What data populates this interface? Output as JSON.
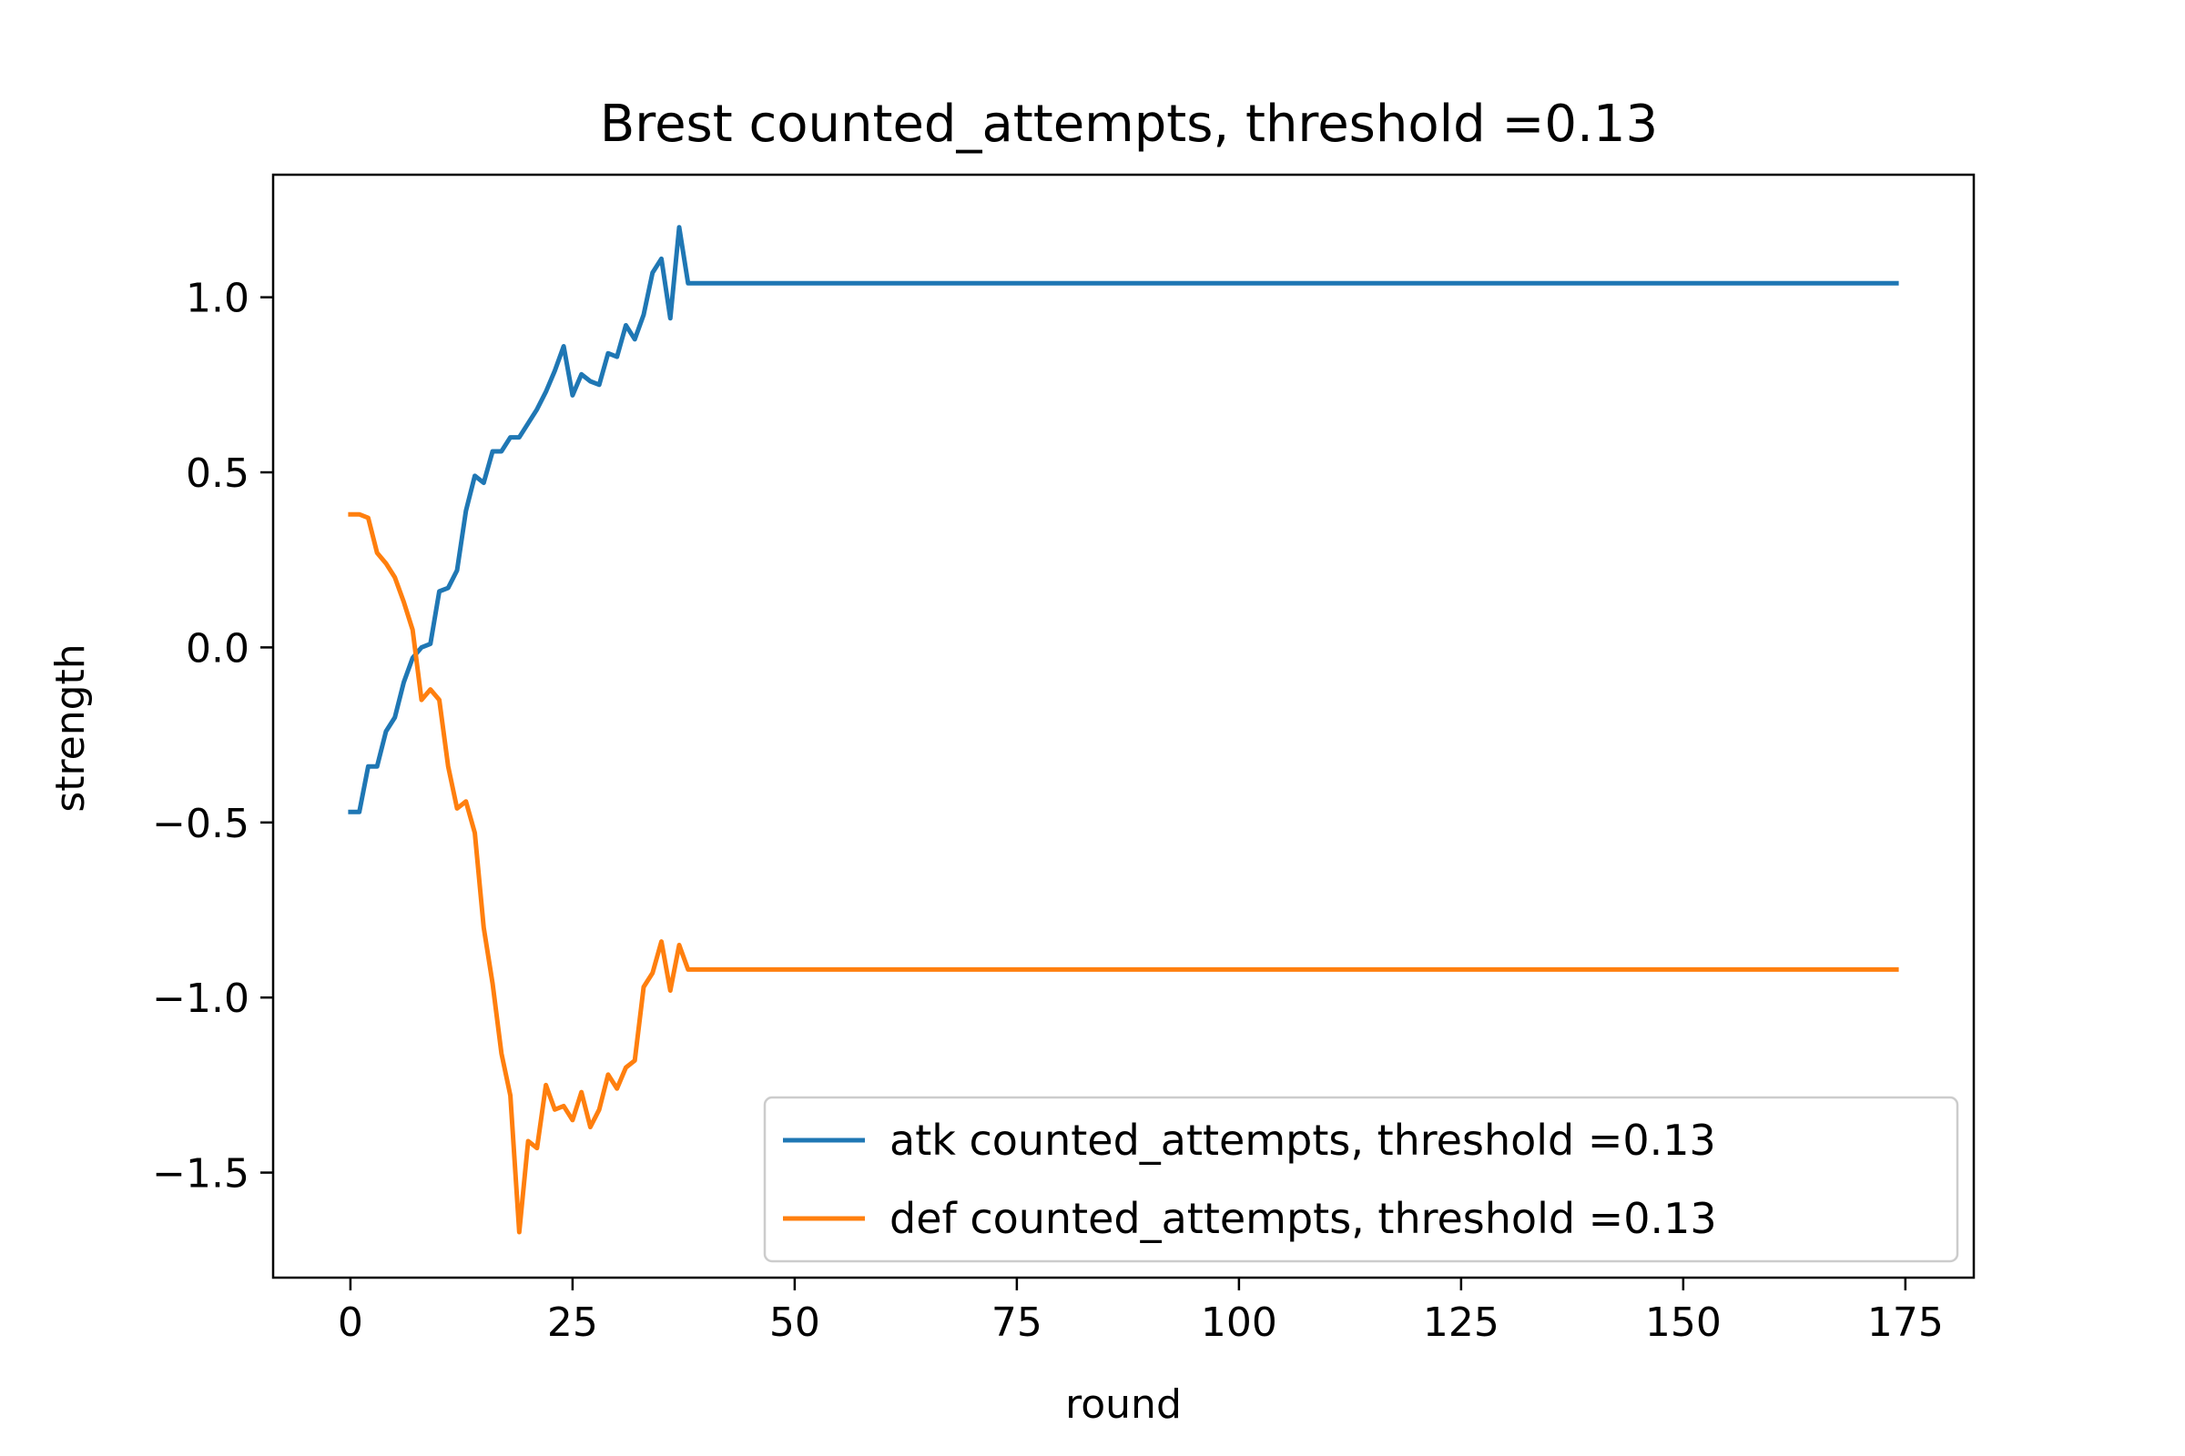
{
  "chart_data": {
    "type": "line",
    "title": "Brest counted_attempts, threshold =0.13",
    "xlabel": "round",
    "ylabel": "strength",
    "xlim": [
      -8.7,
      182.7
    ],
    "ylim": [
      -1.8,
      1.35
    ],
    "xticks": [
      0,
      25,
      50,
      75,
      100,
      125,
      150,
      175
    ],
    "xtick_labels": [
      "0",
      "25",
      "50",
      "75",
      "100",
      "125",
      "150",
      "175"
    ],
    "yticks": [
      1.0,
      0.5,
      0.0,
      -0.5,
      -1.0,
      -1.5
    ],
    "ytick_labels": [
      "1.0",
      "0.5",
      "0.0",
      "−0.5",
      "−1.0",
      "−1.5"
    ],
    "grid": false,
    "legend_position": "lower-right",
    "series": [
      {
        "name": "atk counted_attempts, threshold =0.13",
        "color": "#1f77b4",
        "points": [
          [
            0,
            -0.47
          ],
          [
            1,
            -0.47
          ],
          [
            2,
            -0.34
          ],
          [
            3,
            -0.34
          ],
          [
            4,
            -0.24
          ],
          [
            5,
            -0.2
          ],
          [
            6,
            -0.1
          ],
          [
            7,
            -0.03
          ],
          [
            8,
            0.0
          ],
          [
            9,
            0.01
          ],
          [
            10,
            0.16
          ],
          [
            11,
            0.17
          ],
          [
            12,
            0.22
          ],
          [
            13,
            0.39
          ],
          [
            14,
            0.49
          ],
          [
            15,
            0.47
          ],
          [
            16,
            0.56
          ],
          [
            17,
            0.56
          ],
          [
            18,
            0.6
          ],
          [
            19,
            0.6
          ],
          [
            20,
            0.64
          ],
          [
            21,
            0.68
          ],
          [
            22,
            0.73
          ],
          [
            23,
            0.79
          ],
          [
            24,
            0.86
          ],
          [
            25,
            0.72
          ],
          [
            26,
            0.78
          ],
          [
            27,
            0.76
          ],
          [
            28,
            0.75
          ],
          [
            29,
            0.84
          ],
          [
            30,
            0.83
          ],
          [
            31,
            0.92
          ],
          [
            32,
            0.88
          ],
          [
            33,
            0.95
          ],
          [
            34,
            1.07
          ],
          [
            35,
            1.11
          ],
          [
            36,
            0.94
          ],
          [
            37,
            1.2
          ],
          [
            38,
            1.04
          ],
          [
            174,
            1.04
          ]
        ]
      },
      {
        "name": "def counted_attempts, threshold =0.13",
        "color": "#ff7f0e",
        "points": [
          [
            0,
            0.38
          ],
          [
            1,
            0.38
          ],
          [
            2,
            0.37
          ],
          [
            3,
            0.27
          ],
          [
            4,
            0.24
          ],
          [
            5,
            0.2
          ],
          [
            6,
            0.13
          ],
          [
            7,
            0.05
          ],
          [
            8,
            -0.15
          ],
          [
            9,
            -0.12
          ],
          [
            10,
            -0.15
          ],
          [
            11,
            -0.34
          ],
          [
            12,
            -0.46
          ],
          [
            13,
            -0.44
          ],
          [
            14,
            -0.53
          ],
          [
            15,
            -0.8
          ],
          [
            16,
            -0.96
          ],
          [
            17,
            -1.16
          ],
          [
            18,
            -1.28
          ],
          [
            19,
            -1.67
          ],
          [
            20,
            -1.41
          ],
          [
            21,
            -1.43
          ],
          [
            22,
            -1.25
          ],
          [
            23,
            -1.32
          ],
          [
            24,
            -1.31
          ],
          [
            25,
            -1.35
          ],
          [
            26,
            -1.27
          ],
          [
            27,
            -1.37
          ],
          [
            28,
            -1.32
          ],
          [
            29,
            -1.22
          ],
          [
            30,
            -1.26
          ],
          [
            31,
            -1.2
          ],
          [
            32,
            -1.18
          ],
          [
            33,
            -0.97
          ],
          [
            34,
            -0.93
          ],
          [
            35,
            -0.84
          ],
          [
            36,
            -0.98
          ],
          [
            37,
            -0.85
          ],
          [
            38,
            -0.92
          ],
          [
            174,
            -0.92
          ]
        ]
      }
    ]
  }
}
